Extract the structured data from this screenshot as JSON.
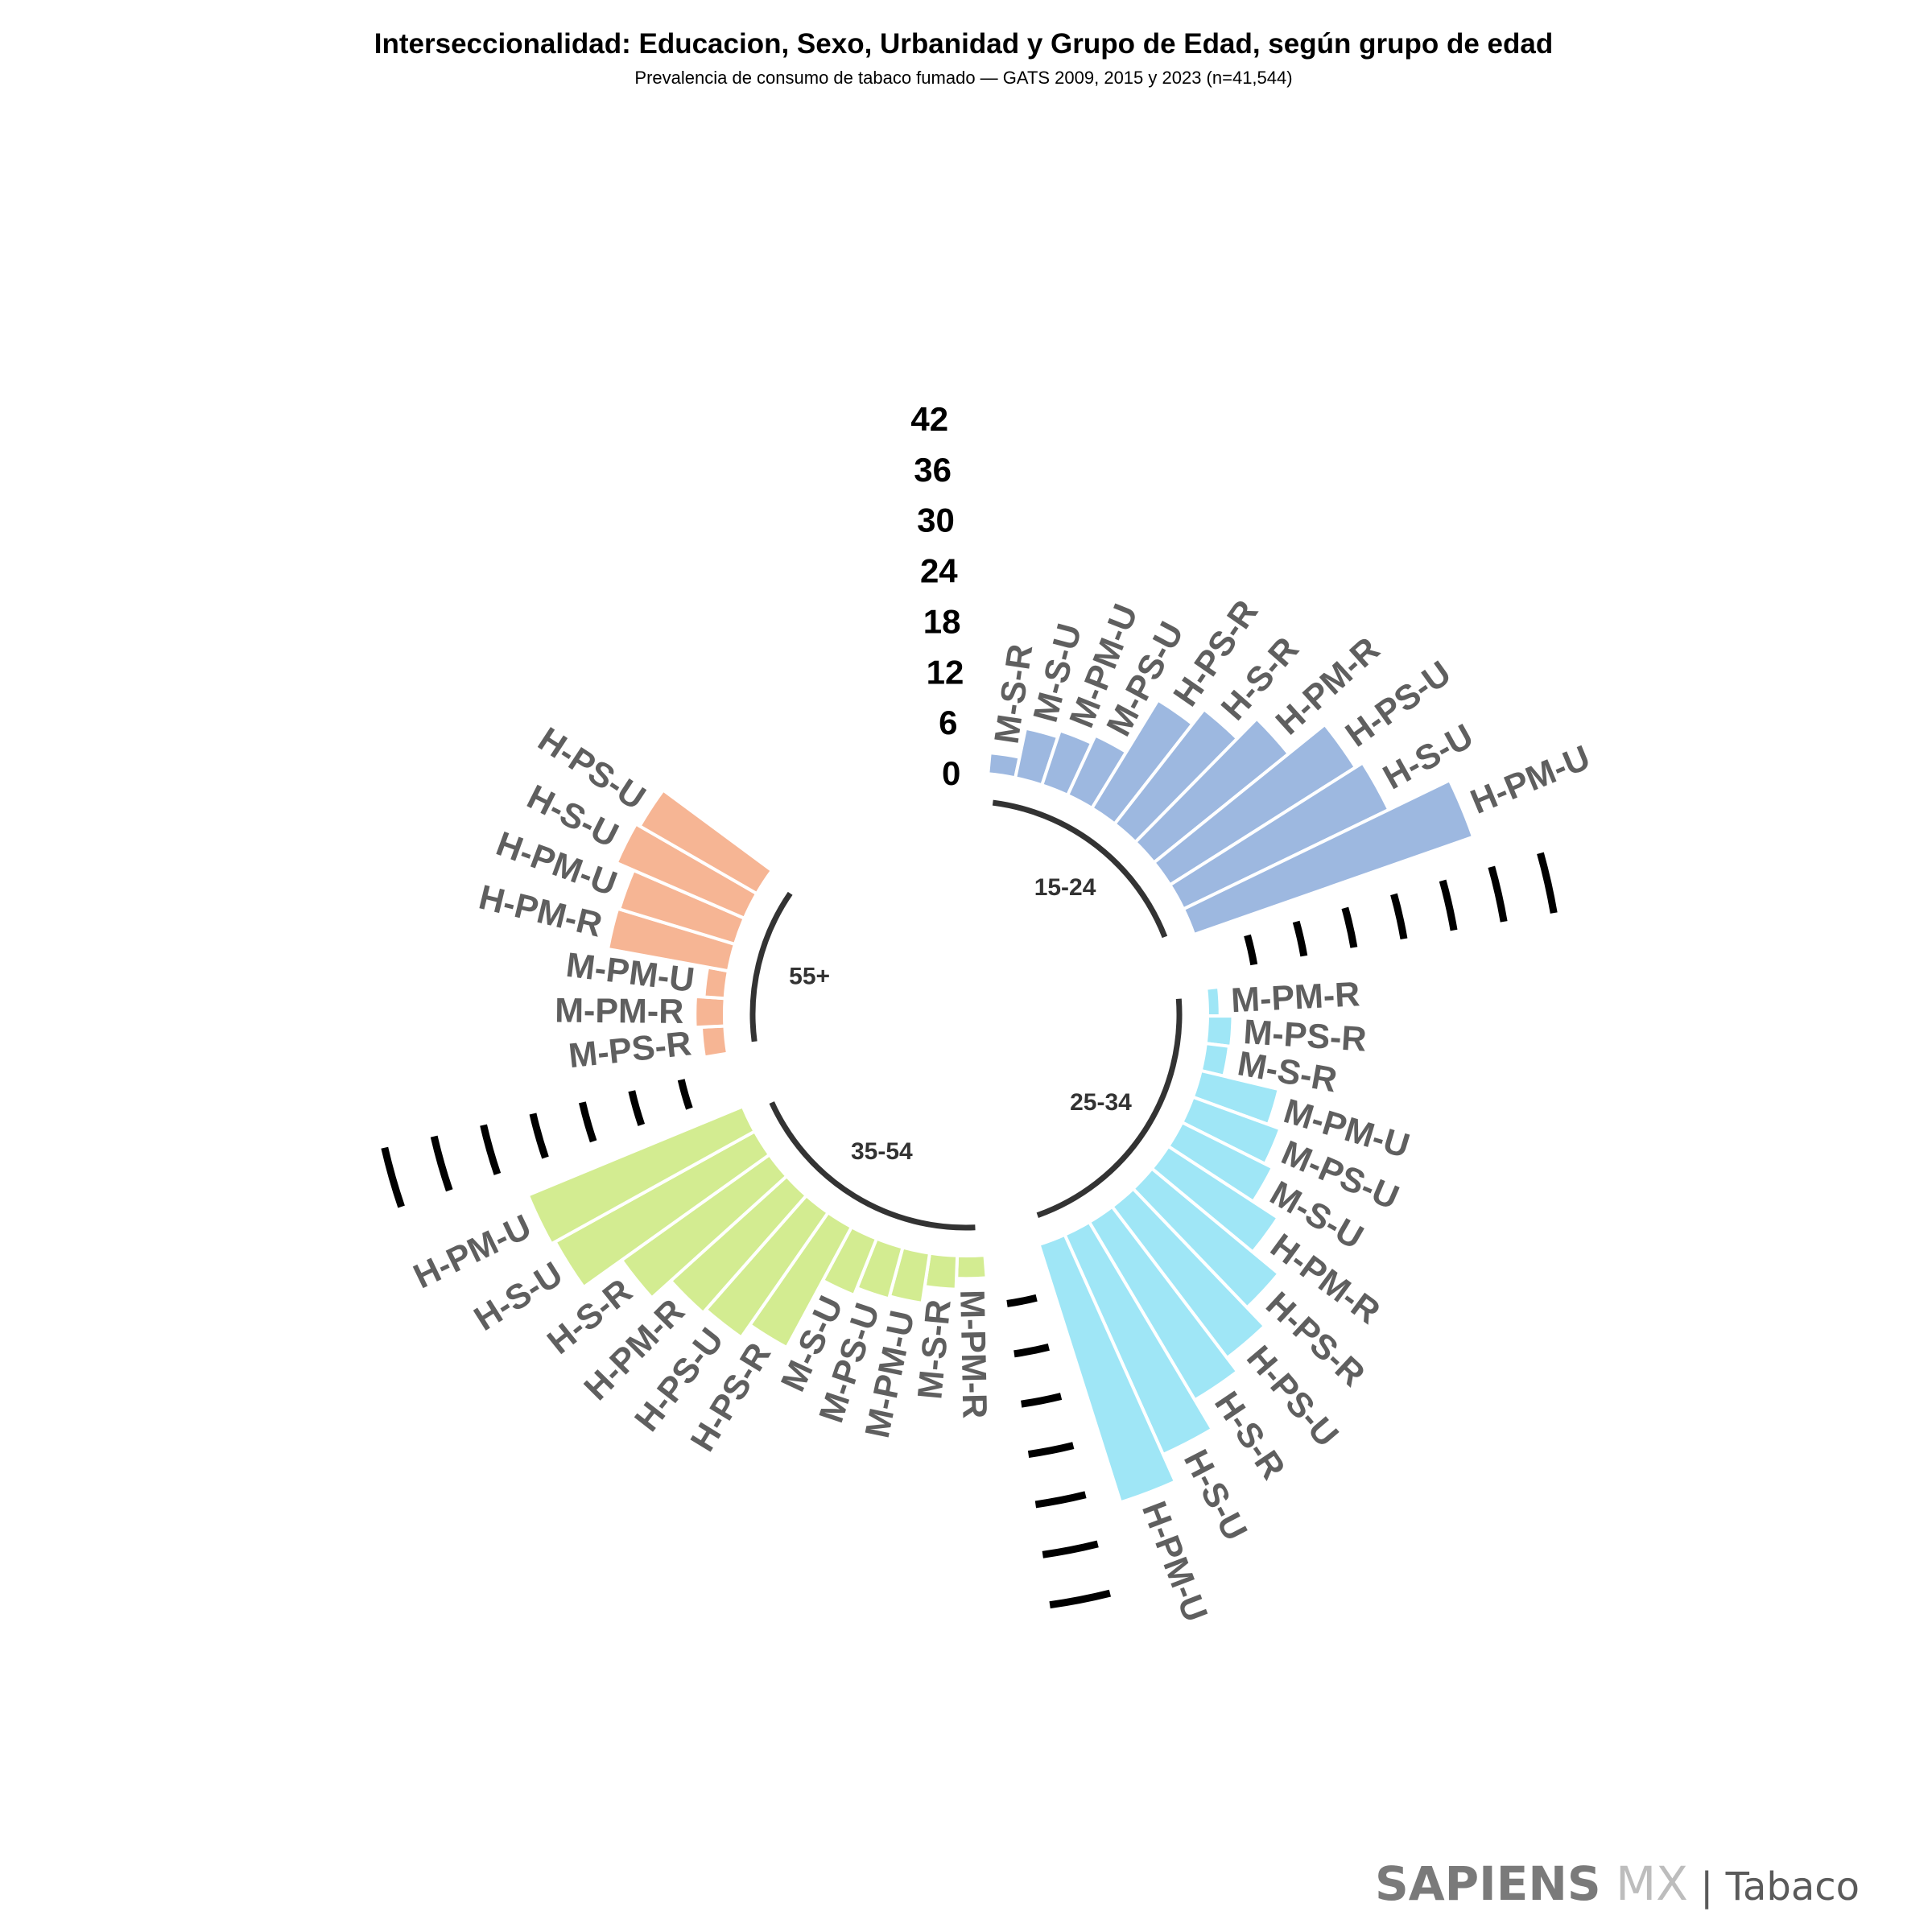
{
  "chart_data": {
    "type": "bar",
    "subtype": "circular-grouped-bar",
    "title": "Interseccionalidad: Educacion, Sexo, Urbanidad y Grupo de Edad, según grupo de edad",
    "subtitle": "Prevalencia de consumo de tabaco fumado — GATS 2009, 2015 y 2023 (n=41,544)",
    "radial_ticks": [
      "0",
      "6",
      "12",
      "18",
      "24",
      "30",
      "36",
      "42"
    ],
    "ylim": [
      0,
      42
    ],
    "groups": [
      {
        "name": "15-24",
        "color": "#9db8e0",
        "categories": [
          "M-S-R",
          "M-S-U",
          "M-PM-U",
          "M-PS-U",
          "H-PS-R",
          "H-S-R",
          "H-PM-R",
          "H-PS-U",
          "H-S-U",
          "H-PM-U"
        ],
        "values": [
          2.5,
          6.0,
          6.8,
          7.8,
          15.0,
          17.2,
          20.5,
          26.0,
          27.0,
          35.0
        ]
      },
      {
        "name": "25-34",
        "color": "#9fe6f6",
        "categories": [
          "M-PM-R",
          "M-PS-R",
          "M-S-R",
          "M-PM-U",
          "M-PS-U",
          "M-S-U",
          "H-PM-R",
          "H-PS-R",
          "H-PS-U",
          "H-S-R",
          "H-S-U",
          "H-PM-U"
        ],
        "values": [
          1.5,
          3.0,
          2.8,
          9.5,
          11.0,
          12.0,
          15.5,
          19.5,
          22.5,
          24.5,
          28.5,
          32.0
        ]
      },
      {
        "name": "35-54",
        "color": "#d3ec91",
        "categories": [
          "M-PM-R",
          "M-S-R",
          "M-PM-U",
          "M-PS-U",
          "M-S-U",
          "H-PS-R",
          "H-PS-U",
          "H-PM-R",
          "H-S-R",
          "H-S-U",
          "H-PM-U"
        ],
        "values": [
          2.7,
          4.0,
          6.0,
          6.3,
          7.2,
          16.2,
          18.0,
          18.5,
          21.5,
          27.0,
          27.5
        ]
      },
      {
        "name": "55+",
        "color": "#f6b594",
        "categories": [
          "M-PS-R",
          "M-PM-R",
          "M-PM-U",
          "H-PM-R",
          "H-PM-U",
          "H-S-U",
          "H-PS-U"
        ],
        "values": [
          2.8,
          3.5,
          2.5,
          14.5,
          14.3,
          16.5,
          16.0
        ]
      }
    ]
  },
  "logo": {
    "part1": "SAPIENS",
    "part2": "MX",
    "part3": "| Tabaco",
    "colors": {
      "part1": "#7a7a7a",
      "part2": "#bdbdbd",
      "part3": "#5a5a5a"
    }
  }
}
